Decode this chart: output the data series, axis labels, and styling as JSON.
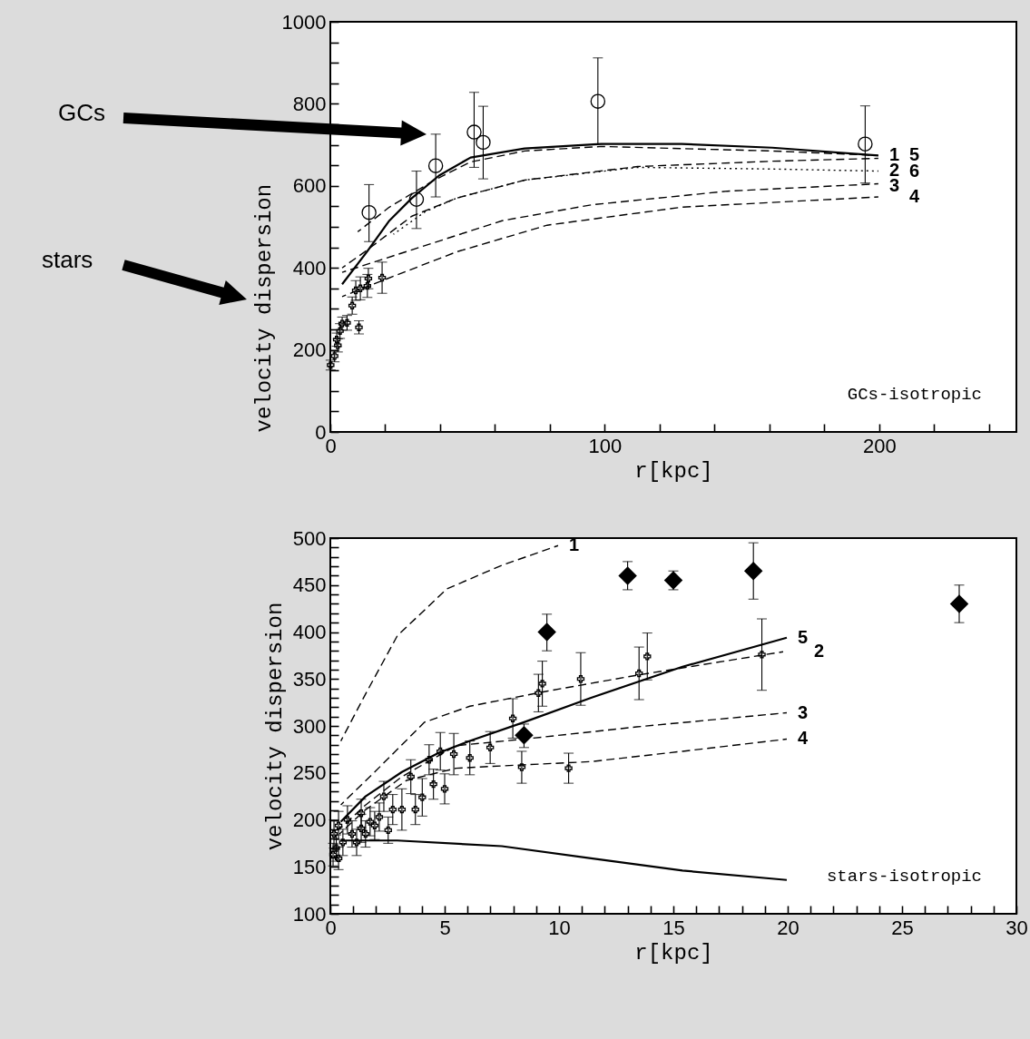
{
  "chart_data": [
    {
      "type": "line",
      "xlabel": "r[kpc]",
      "ylabel": "velocity dispersion",
      "xlim": [
        0,
        250
      ],
      "ylim": [
        0,
        1000
      ],
      "xticks": [
        0,
        {
          "value": 20,
          "label": null
        },
        {
          "value": 40,
          "label": null
        },
        {
          "value": 60,
          "label": null
        },
        {
          "value": 80,
          "label": null
        },
        100,
        {
          "value": 120,
          "label": null
        },
        {
          "value": 140,
          "label": null
        },
        {
          "value": 160,
          "label": null
        },
        {
          "value": 180,
          "label": null
        },
        200,
        {
          "value": 220,
          "label": null
        },
        {
          "value": 240,
          "label": null
        }
      ],
      "yticks": [
        0,
        {
          "value": 50,
          "label": null
        },
        {
          "value": 100,
          "label": null
        },
        {
          "value": 150,
          "label": null
        },
        200,
        {
          "value": 250,
          "label": null
        },
        {
          "value": 300,
          "label": null
        },
        {
          "value": 350,
          "label": null
        },
        400,
        {
          "value": 450,
          "label": null
        },
        {
          "value": 500,
          "label": null
        },
        {
          "value": 550,
          "label": null
        },
        600,
        {
          "value": 650,
          "label": null
        },
        {
          "value": 700,
          "label": null
        },
        {
          "value": 750,
          "label": null
        },
        800,
        {
          "value": 850,
          "label": null
        },
        {
          "value": 900,
          "label": null
        },
        {
          "value": 950,
          "label": null
        },
        1000
      ],
      "series": [
        {
          "type": "scatter",
          "color": "#000000",
          "marker": "circle",
          "x": [
            14.1,
            31.4,
            38.4,
            52.4,
            55.7,
            97.5,
            194.9
          ],
          "values": [
            535,
            567,
            649,
            731,
            706,
            806,
            702
          ],
          "errors": [
            [
              464,
              603
            ],
            [
              496,
              636
            ],
            [
              573,
              726
            ],
            [
              645,
              828
            ],
            [
              617,
              794
            ],
            [
              702,
              912
            ],
            [
              607,
              795
            ]
          ]
        },
        {
          "type": "scatter",
          "color": "#000000",
          "marker": "cross",
          "x": [
            0.12,
            1.54,
            2.34,
            2.73,
            3.52,
            4.32,
            6.1,
            7.98,
            9.27,
            10.42,
            10.95,
            13.5,
            13.86,
            18.87
          ],
          "values": [
            163,
            185,
            225,
            211,
            246,
            264,
            266,
            308,
            345,
            255,
            350,
            356,
            374,
            376
          ],
          "errors": [
            12,
            14,
            16,
            16,
            18,
            16,
            18,
            21,
            24,
            16,
            28,
            28,
            25,
            38
          ]
        },
        {
          "name": "1",
          "color": "#000000",
          "line_style": "dashed",
          "x": [
            10,
            21.5,
            37.9,
            51,
            70.8,
            98.7,
            161,
            199.7
          ],
          "values": [
            488,
            548,
            614,
            658,
            685,
            696,
            685,
            674
          ]
        },
        {
          "name": "2",
          "color": "#000000",
          "line_style": "dashed",
          "x": [
            4.3,
            12.5,
            29.7,
            46,
            70.8,
            112,
            161,
            199.7
          ],
          "values": [
            400,
            439,
            526,
            570,
            614,
            647,
            660,
            667
          ]
        },
        {
          "name": "3",
          "color": "#000000",
          "line_style": "dashed",
          "x": [
            4.3,
            29.7,
            62.6,
            95.4,
            144.7,
            199.7
          ],
          "values": [
            389,
            444,
            515,
            554,
            587,
            605
          ]
        },
        {
          "name": "4",
          "color": "#000000",
          "line_style": "dashed",
          "x": [
            4.3,
            18.2,
            46,
            79,
            128,
            199.7
          ],
          "values": [
            330,
            367,
            439,
            504,
            548,
            573
          ]
        },
        {
          "name": "5",
          "color": "#000000",
          "line_style": "solid",
          "x": [
            4.3,
            13.3,
            21.5,
            29.7,
            39.6,
            51.1,
            70.8,
            98.7,
            128,
            161,
            199.7
          ],
          "values": [
            360,
            439,
            515,
            570,
            625,
            669,
            691,
            702,
            702,
            693,
            674
          ]
        },
        {
          "name": "6",
          "color": "#000000",
          "line_style": "dotted",
          "x": [
            23,
            34.6,
            46,
            70.8,
            112,
            161,
            199.7
          ],
          "values": [
            482,
            537,
            570,
            614,
            645,
            641,
            636
          ]
        }
      ],
      "annotations": [
        "GCs-isotropic",
        "GCs",
        "stars"
      ]
    },
    {
      "type": "line",
      "xlabel": "r[kpc]",
      "ylabel": "velocity dispersion",
      "xlim": [
        0,
        30
      ],
      "ylim": [
        100,
        500
      ],
      "xticks": [
        0,
        {
          "value": 1,
          "label": null
        },
        {
          "value": 2,
          "label": null
        },
        {
          "value": 3,
          "label": null
        },
        {
          "value": 4,
          "label": null
        },
        5,
        {
          "value": 6,
          "label": null
        },
        {
          "value": 7,
          "label": null
        },
        {
          "value": 8,
          "label": null
        },
        {
          "value": 9,
          "label": null
        },
        10,
        {
          "value": 11,
          "label": null
        },
        {
          "value": 12,
          "label": null
        },
        {
          "value": 13,
          "label": null
        },
        {
          "value": 14,
          "label": null
        },
        15,
        {
          "value": 16,
          "label": null
        },
        {
          "value": 17,
          "label": null
        },
        {
          "value": 18,
          "label": null
        },
        {
          "value": 19,
          "label": null
        },
        20,
        {
          "value": 21,
          "label": null
        },
        {
          "value": 22,
          "label": null
        },
        {
          "value": 23,
          "label": null
        },
        {
          "value": 24,
          "label": null
        },
        25,
        {
          "value": 26,
          "label": null
        },
        {
          "value": 27,
          "label": null
        },
        {
          "value": 28,
          "label": null
        },
        {
          "value": 29,
          "label": null
        },
        30
      ],
      "yticks": [
        100,
        {
          "value": 110,
          "label": null
        },
        {
          "value": 120,
          "label": null
        },
        {
          "value": 130,
          "label": null
        },
        {
          "value": 140,
          "label": null
        },
        150,
        {
          "value": 160,
          "label": null
        },
        {
          "value": 170,
          "label": null
        },
        {
          "value": 180,
          "label": null
        },
        {
          "value": 190,
          "label": null
        },
        200,
        {
          "value": 210,
          "label": null
        },
        {
          "value": 220,
          "label": null
        },
        {
          "value": 230,
          "label": null
        },
        {
          "value": 240,
          "label": null
        },
        250,
        {
          "value": 260,
          "label": null
        },
        {
          "value": 270,
          "label": null
        },
        {
          "value": 280,
          "label": null
        },
        {
          "value": 290,
          "label": null
        },
        300,
        {
          "value": 310,
          "label": null
        },
        {
          "value": 320,
          "label": null
        },
        {
          "value": 330,
          "label": null
        },
        {
          "value": 340,
          "label": null
        },
        350,
        {
          "value": 360,
          "label": null
        },
        {
          "value": 370,
          "label": null
        },
        {
          "value": 380,
          "label": null
        },
        {
          "value": 390,
          "label": null
        },
        400,
        {
          "value": 410,
          "label": null
        },
        {
          "value": 420,
          "label": null
        },
        {
          "value": 430,
          "label": null
        },
        {
          "value": 440,
          "label": null
        },
        450,
        {
          "value": 460,
          "label": null
        },
        {
          "value": 470,
          "label": null
        },
        {
          "value": 480,
          "label": null
        },
        {
          "value": 490,
          "label": null
        },
        500
      ],
      "series": [
        {
          "type": "scatter",
          "color": "#000000",
          "marker": "cross",
          "x": [
            0.12,
            0.16,
            0.26,
            0.36,
            0.36,
            0.55,
            0.75,
            0.95,
            1.15,
            1.35,
            1.35,
            1.54,
            1.74,
            1.94,
            2.14,
            2.34,
            2.53,
            2.73,
            3.13,
            3.52,
            3.72,
            4.02,
            4.32,
            4.51,
            4.81,
            5.0,
            5.4,
            6.1,
            6.99,
            7.98,
            8.37,
            9.1,
            9.27,
            10.42,
            10.95,
            13.5,
            13.86,
            18.87
          ],
          "values": [
            163,
            185,
            170,
            159,
            194,
            176,
            200,
            185,
            176,
            191,
            207,
            185,
            198,
            194,
            203,
            225,
            189,
            211,
            211,
            246,
            211,
            224,
            264,
            238,
            273,
            233,
            270,
            266,
            277,
            308,
            256,
            335,
            345,
            255,
            350,
            356,
            374,
            376
          ],
          "errors": [
            12,
            15,
            14,
            12,
            15,
            14,
            15,
            14,
            14,
            15,
            15,
            14,
            15,
            15,
            15,
            16,
            14,
            16,
            22,
            18,
            16,
            20,
            16,
            16,
            20,
            16,
            22,
            18,
            17,
            21,
            17,
            20,
            24,
            16,
            28,
            28,
            25,
            38
          ]
        },
        {
          "type": "scatter",
          "color": "#000000",
          "marker": "diamond",
          "x": [
            8.47,
            9.47,
            13.0,
            15.0,
            18.5,
            27.5
          ],
          "values": [
            290,
            400,
            460,
            455,
            465,
            430
          ],
          "errors": [
            [
              277,
              302
            ],
            [
              380,
              419
            ],
            [
              445,
              475
            ],
            [
              445,
              465
            ],
            [
              435,
              495
            ],
            [
              410,
              450
            ]
          ]
        },
        {
          "name": "1",
          "color": "#000000",
          "line_style": "dashed",
          "x": [
            0.46,
            1.54,
            2.93,
            5.1,
            7.5,
            9.96
          ],
          "values": [
            284,
            334,
            396,
            446,
            471,
            492
          ]
        },
        {
          "name": "5",
          "color": "#000000",
          "line_style": "solid",
          "x": [
            0.46,
            1.54,
            3.13,
            4.71,
            6.1,
            8.47,
            11.4,
            15.4,
            19.96
          ],
          "values": [
            198,
            225,
            251,
            271,
            284,
            304,
            330,
            363,
            394
          ]
        },
        {
          "name": "2",
          "color": "#000000",
          "line_style": "dashed",
          "x": [
            0.46,
            1.94,
            4.12,
            6.1,
            9.47,
            13.4,
            19.8
          ],
          "values": [
            216,
            251,
            304,
            321,
            337,
            354,
            379
          ]
        },
        {
          "name": "3",
          "color": "#000000",
          "line_style": "dashed",
          "x": [
            0.4,
            1.5,
            3.13,
            5.5,
            8.47,
            13.4,
            19.96
          ],
          "values": [
            190,
            215,
            246,
            279,
            286,
            299,
            314
          ]
        },
        {
          "name": "4",
          "color": "#000000",
          "line_style": "dashed",
          "x": [
            0.4,
            1.5,
            3.33,
            5.5,
            7.1,
            11.4,
            15.4,
            19.96
          ],
          "values": [
            185,
            210,
            242,
            255,
            257,
            262,
            273,
            286
          ]
        },
        {
          "color": "#000000",
          "line_style": "solid",
          "x": [
            0.46,
            2.93,
            7.5,
            11.4,
            15.4,
            19.96
          ],
          "values": [
            178,
            178,
            172,
            159,
            146,
            136
          ]
        }
      ],
      "annotations": [
        "stars-isotropic"
      ]
    }
  ]
}
